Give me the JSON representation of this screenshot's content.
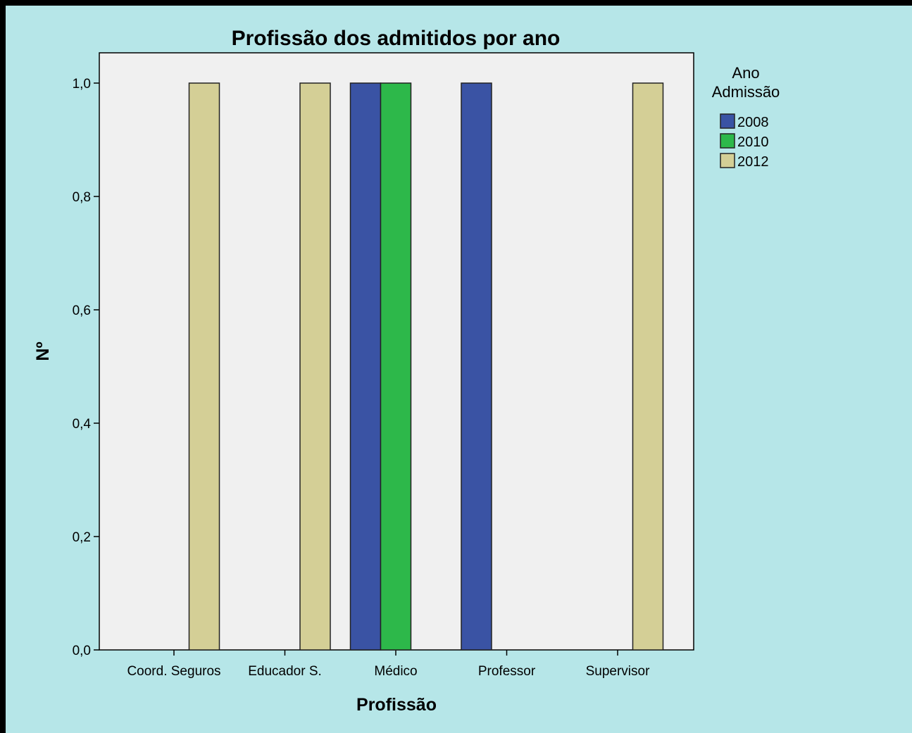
{
  "chart_data": {
    "type": "bar",
    "title": "Profissão dos admitidos por ano",
    "xlabel": "Profissão",
    "ylabel": "Nº",
    "categories": [
      "Coord. Seguros",
      "Educador S.",
      "Médico",
      "Professor",
      "Supervisor"
    ],
    "series": [
      {
        "name": "2008",
        "color": "#3a53a4",
        "values": [
          0,
          0,
          1,
          1,
          0
        ]
      },
      {
        "name": "2010",
        "color": "#2db84a",
        "values": [
          0,
          0,
          1,
          0,
          0
        ]
      },
      {
        "name": "2012",
        "color": "#d4cf96",
        "values": [
          1,
          1,
          0,
          0,
          1
        ]
      }
    ],
    "ylim": [
      0,
      1
    ],
    "yticks": [
      0,
      0.2,
      0.4,
      0.6,
      0.8,
      1.0
    ],
    "ytick_labels": [
      "0,0",
      "0,2",
      "0,4",
      "0,6",
      "0,8",
      "1,0"
    ],
    "legend": {
      "title_lines": [
        "Ano",
        "Admissão"
      ],
      "placement": "right"
    },
    "grid": false,
    "plot_background": "#f0f0f0",
    "figure_background": "#b6e6e8"
  }
}
